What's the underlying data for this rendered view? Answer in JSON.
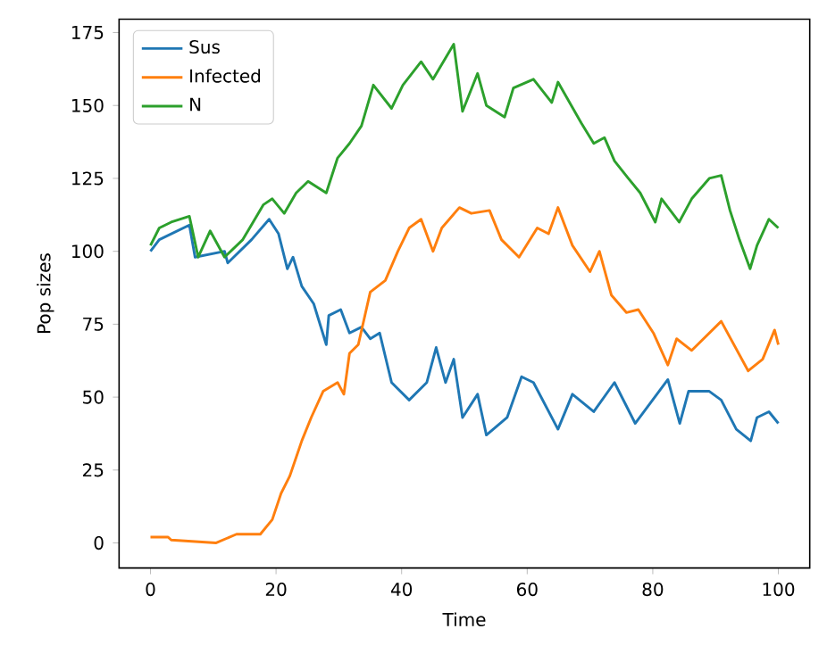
{
  "chart_data": {
    "type": "line",
    "xlabel": "Time",
    "ylabel": "Pop sizes",
    "xlim": [
      -5,
      105
    ],
    "ylim": [
      -8.6,
      179.6
    ],
    "xticks": [
      0,
      20,
      40,
      60,
      80,
      100
    ],
    "yticks": [
      0,
      25,
      50,
      75,
      100,
      125,
      150,
      175
    ],
    "legend": "top left",
    "grid": false,
    "series": [
      {
        "name": "Sus",
        "color": "#1f77b4",
        "x": [
          0,
          1.4,
          6.2,
          7.1,
          11.8,
          12.3,
          16.1,
          18.9,
          20.4,
          21.8,
          22.7,
          24.1,
          26,
          28,
          28.4,
          30.3,
          31.7,
          33.6,
          35,
          36.5,
          38.4,
          41.2,
          44,
          45.5,
          47,
          48.3,
          49.7,
          52.1,
          53.5,
          56.8,
          59.1,
          61,
          64.9,
          67.2,
          70.6,
          73.9,
          77.2,
          82.4,
          84.3,
          85.7,
          89,
          90.9,
          93.3,
          95.6,
          96.6,
          98.5,
          100
        ],
        "values": [
          100,
          104,
          109,
          98,
          100,
          96,
          104,
          111,
          106,
          94,
          98,
          88,
          82,
          68,
          78,
          80,
          72,
          74,
          70,
          72,
          55,
          49,
          55,
          67,
          55,
          63,
          43,
          51,
          37,
          43,
          57,
          55,
          39,
          51,
          45,
          55,
          41,
          56,
          41,
          52,
          52,
          49,
          39,
          35,
          43,
          45,
          41
        ]
      },
      {
        "name": "Infected",
        "color": "#ff7f0e",
        "x": [
          0,
          2.8,
          3.3,
          10.4,
          13.7,
          17.5,
          19.4,
          20.8,
          22.2,
          24.1,
          25.6,
          27.5,
          29.8,
          30.8,
          31.7,
          33.1,
          35,
          37.4,
          39.4,
          41.2,
          43.1,
          45,
          46.4,
          49.2,
          51.1,
          54,
          55.9,
          58.7,
          61.6,
          63.4,
          64.9,
          67.2,
          70,
          71.5,
          73.4,
          75.8,
          77.7,
          80.1,
          82.4,
          83.8,
          86.2,
          90.9,
          95.2,
          97.5,
          99.4,
          100
        ],
        "values": [
          2,
          2,
          1,
          0,
          3,
          3,
          8,
          17,
          23,
          35,
          43,
          52,
          55,
          51,
          65,
          68,
          86,
          90,
          100,
          108,
          111,
          100,
          108,
          115,
          113,
          114,
          104,
          98,
          108,
          106,
          115,
          102,
          93,
          100,
          85,
          79,
          80,
          72,
          61,
          70,
          66,
          76,
          59,
          63,
          73,
          68
        ]
      },
      {
        "name": "N",
        "color": "#2ca02c",
        "x": [
          0,
          1.4,
          3.3,
          6.2,
          7.6,
          9.5,
          11.8,
          14.7,
          18,
          19.4,
          21.3,
          23.2,
          25.1,
          28,
          29.8,
          31.7,
          33.6,
          35.5,
          38.4,
          40.2,
          43.1,
          45,
          48.3,
          49.7,
          52.1,
          53.5,
          56.4,
          57.8,
          61,
          63.9,
          64.9,
          68.6,
          70.6,
          72.3,
          73.9,
          76.1,
          78,
          80.4,
          81.4,
          84.2,
          86.2,
          89,
          90.9,
          92.3,
          93.8,
          95.5,
          96.6,
          98.5,
          100
        ],
        "values": [
          102,
          108,
          110,
          112,
          98,
          107,
          98,
          104,
          116,
          118,
          113,
          120,
          124,
          120,
          132,
          137,
          143,
          157,
          149,
          157,
          165,
          159,
          171,
          148,
          161,
          150,
          146,
          156,
          159,
          151,
          158,
          144,
          137,
          139,
          131,
          125,
          120,
          110,
          118,
          110,
          118,
          125,
          126,
          114,
          104,
          94,
          102,
          111,
          108
        ]
      }
    ]
  }
}
